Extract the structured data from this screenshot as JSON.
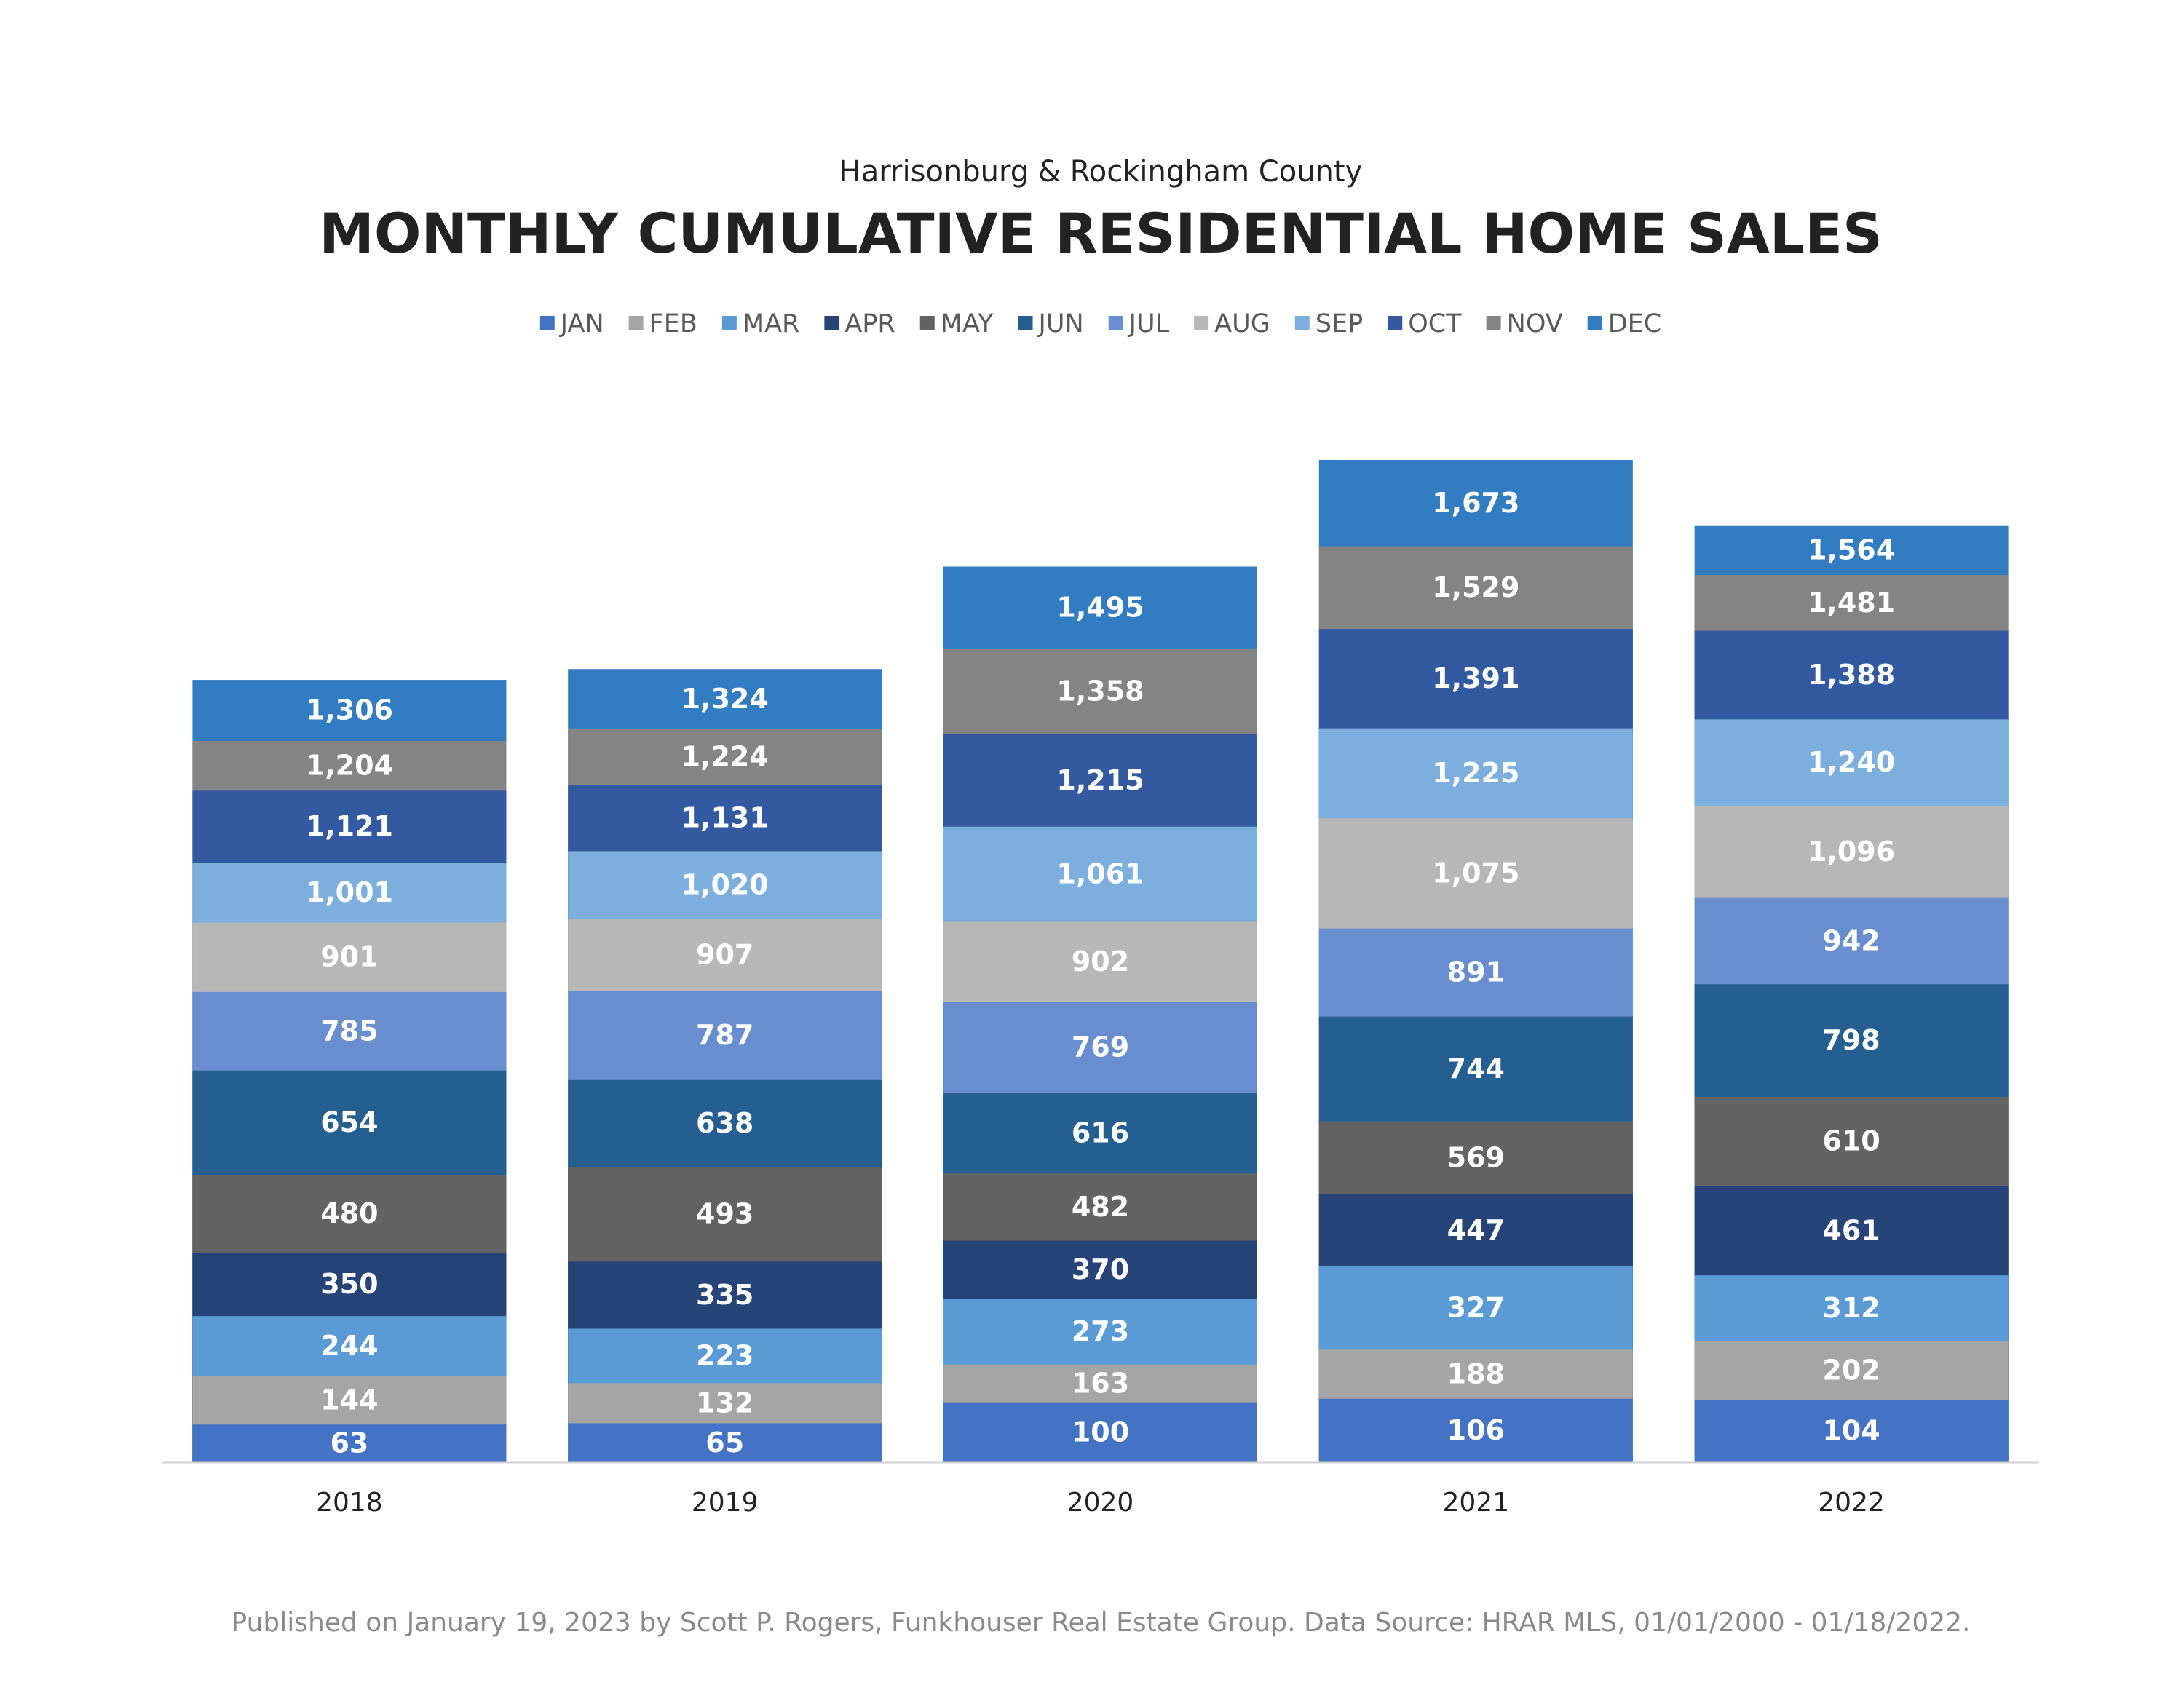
{
  "chart_data": {
    "type": "bar",
    "mode": "overlay-cumulative",
    "subtitle": "Harrisonburg & Rockingham County",
    "title": "MONTHLY CUMULATIVE RESIDENTIAL HOME SALES",
    "categories": [
      "2018",
      "2019",
      "2020",
      "2021",
      "2022"
    ],
    "series": [
      {
        "name": "JAN",
        "color": "#4472c4",
        "values": [
          63,
          65,
          100,
          106,
          104
        ]
      },
      {
        "name": "FEB",
        "color": "#a5a5a5",
        "values": [
          144,
          132,
          163,
          188,
          202
        ]
      },
      {
        "name": "MAR",
        "color": "#5b9bd5",
        "values": [
          244,
          223,
          273,
          327,
          312
        ]
      },
      {
        "name": "APR",
        "color": "#264478",
        "values": [
          350,
          335,
          370,
          447,
          461
        ]
      },
      {
        "name": "MAY",
        "color": "#636363",
        "values": [
          480,
          493,
          482,
          569,
          610
        ]
      },
      {
        "name": "JUN",
        "color": "#255e91",
        "values": [
          654,
          638,
          616,
          744,
          798
        ]
      },
      {
        "name": "JUL",
        "color": "#698ed0",
        "values": [
          785,
          787,
          769,
          891,
          942
        ]
      },
      {
        "name": "AUG",
        "color": "#b7b7b7",
        "values": [
          901,
          907,
          902,
          1075,
          1096
        ],
        "value_labels": [
          "901",
          "907",
          "902",
          "1,075",
          "1,096"
        ]
      },
      {
        "name": "SEP",
        "color": "#7cafdd",
        "values": [
          1001,
          1020,
          1061,
          1225,
          1240
        ],
        "value_labels": [
          "1,001",
          "1,020",
          "1,061",
          "1,225",
          "1,240"
        ]
      },
      {
        "name": "OCT",
        "color": "#335aa1",
        "values": [
          1121,
          1131,
          1215,
          1391,
          1388
        ],
        "value_labels": [
          "1,121",
          "1,131",
          "1,215",
          "1,391",
          "1,388"
        ]
      },
      {
        "name": "NOV",
        "color": "#848484",
        "values": [
          1204,
          1224,
          1358,
          1529,
          1481
        ],
        "value_labels": [
          "1,204",
          "1,224",
          "1,358",
          "1,529",
          "1,481"
        ]
      },
      {
        "name": "DEC",
        "color": "#327dc2",
        "values": [
          1306,
          1324,
          1495,
          1673,
          1564
        ],
        "value_labels": [
          "1,306",
          "1,324",
          "1,495",
          "1,673",
          "1,564"
        ]
      }
    ],
    "legend": "top",
    "footer": "Published on January 19, 2023 by Scott P. Rogers, Funkhouser Real Estate Group. Data Source: HRAR MLS, 01/01/2000 - 01/18/2022."
  }
}
